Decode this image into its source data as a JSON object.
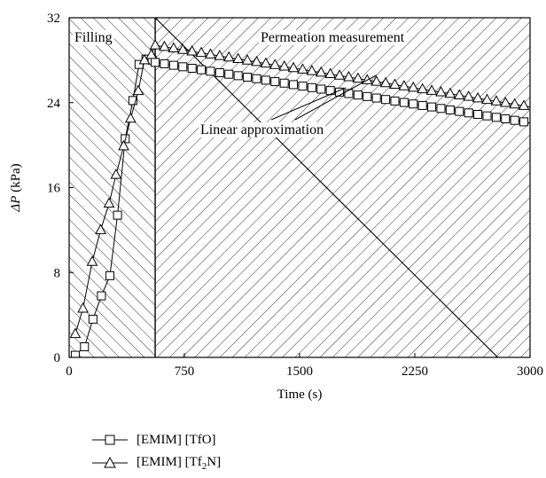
{
  "chart_data": {
    "type": "line",
    "xlabel": "Time (s)",
    "ylabel_symbol": "ΔP",
    "ylabel_unit": " (kPa)",
    "xlim": [
      0,
      3000
    ],
    "ylim": [
      0,
      32
    ],
    "xticks": [
      0,
      750,
      1500,
      2250,
      3000
    ],
    "yticks": [
      0,
      8,
      16,
      24,
      32
    ],
    "grid": false,
    "legend_position": "bottom-left, below plot",
    "regions": [
      {
        "label": "Filling",
        "x_range": [
          0,
          560
        ],
        "hatch": "forward-diagonal"
      },
      {
        "label": "Permeation measurement",
        "x_range": [
          560,
          3000
        ],
        "hatch": "backward-diagonal"
      }
    ],
    "annotations": [
      {
        "text": "Linear approximation",
        "arrow_targets": [
          [
            1800,
            25.4
          ],
          [
            2000,
            26.6
          ]
        ]
      }
    ],
    "series": [
      {
        "name": "[EMIM] [TfO]",
        "legend_main": "[EMIM] [TfO]",
        "marker": "square",
        "filling_points": [
          [
            40,
            0.2
          ],
          [
            100,
            1.0
          ],
          [
            155,
            3.6
          ],
          [
            210,
            5.8
          ],
          [
            265,
            7.7
          ],
          [
            315,
            13.4
          ],
          [
            365,
            20.6
          ],
          [
            415,
            24.2
          ],
          [
            455,
            27.6
          ],
          [
            500,
            28.1
          ],
          [
            540,
            28.0
          ]
        ],
        "permeation_start": [
          560,
          27.8
        ],
        "permeation_end": [
          3000,
          22.1
        ],
        "permeation_marker_step": 60
      },
      {
        "name": "[EMIM] [Tf2N]",
        "legend_main": "[EMIM] [Tf",
        "legend_sub": "2",
        "legend_tail": "N]",
        "marker": "triangle",
        "filling_points": [
          [
            40,
            2.2
          ],
          [
            90,
            4.6
          ],
          [
            150,
            9.0
          ],
          [
            205,
            12.0
          ],
          [
            260,
            14.5
          ],
          [
            305,
            17.2
          ],
          [
            355,
            19.9
          ],
          [
            400,
            22.5
          ],
          [
            450,
            25.1
          ],
          [
            490,
            28.0
          ],
          [
            535,
            28.5
          ]
        ],
        "permeation_start": [
          560,
          29.4
        ],
        "permeation_end": [
          3000,
          23.6
        ],
        "permeation_marker_step": 60
      }
    ]
  }
}
